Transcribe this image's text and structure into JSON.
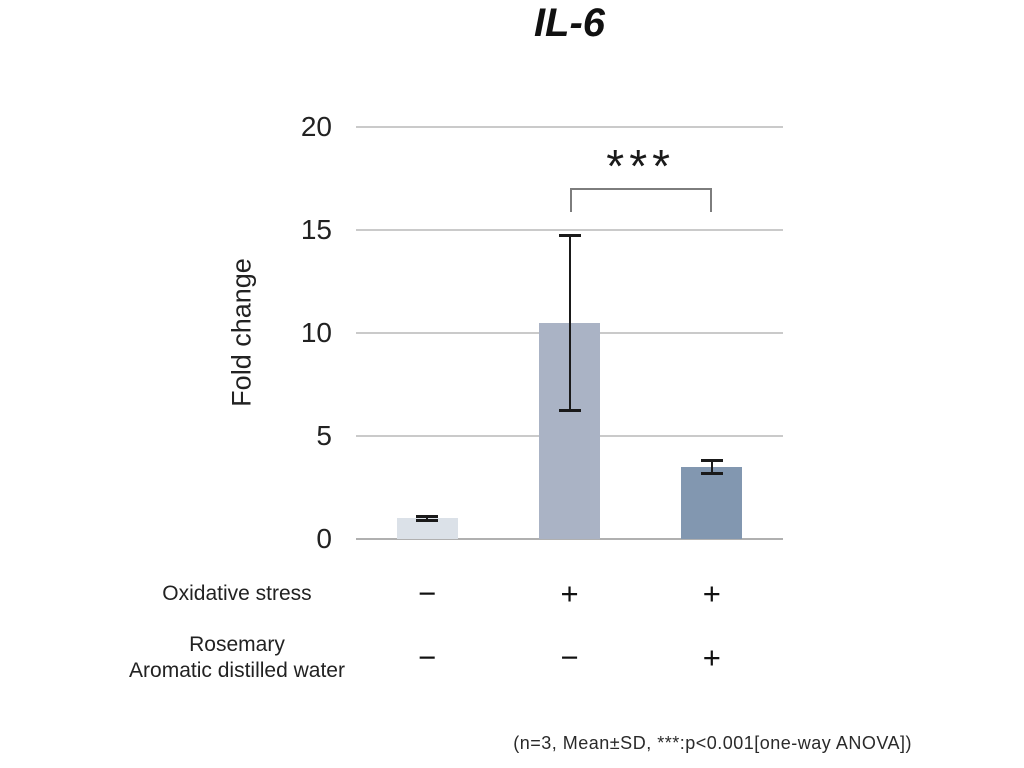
{
  "chart_data": {
    "type": "bar",
    "title": "IL-6",
    "ylabel": "Fold change",
    "ylim": [
      0,
      20
    ],
    "yticks": [
      0,
      5,
      10,
      15,
      20
    ],
    "grid": true,
    "categories": [
      "stress− / rosemary−",
      "stress+ / rosemary−",
      "stress+ / rosemary+"
    ],
    "values": [
      1.0,
      10.5,
      3.5
    ],
    "errors": [
      0.1,
      4.25,
      0.3
    ],
    "bar_colors": [
      "#dbe1e8",
      "#aab3c5",
      "#8297b0"
    ],
    "error_color": "#1a1a1a",
    "significance": {
      "label": "***",
      "from_index": 1,
      "to_index": 2,
      "meaning": "p<0.001"
    },
    "condition_rows": [
      {
        "label_lines": [
          "Oxidative stress"
        ],
        "signs": [
          "−",
          "+",
          "+"
        ]
      },
      {
        "label_lines": [
          "Rosemary",
          "Aromatic distilled water"
        ],
        "signs": [
          "−",
          "−",
          "+"
        ]
      }
    ],
    "footnote": "(n=3, Mean±SD, ***:p<0.001[one-way ANOVA])"
  }
}
